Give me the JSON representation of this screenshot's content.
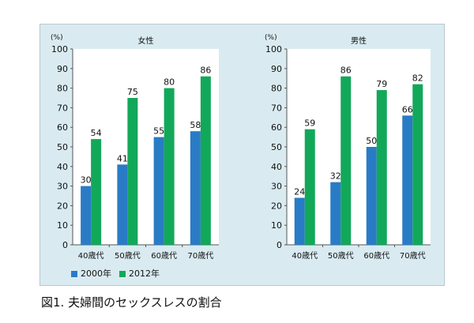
{
  "chart_data": [
    {
      "type": "bar",
      "title": "女性",
      "ylabel": "(%)",
      "categories": [
        "40歳代",
        "50歳代",
        "60歳代",
        "70歳代"
      ],
      "series": [
        {
          "name": "2000年",
          "values": [
            30,
            41,
            55,
            58
          ],
          "color": "#2a7bc6"
        },
        {
          "name": "2012年",
          "values": [
            54,
            75,
            80,
            86
          ],
          "color": "#12a85a"
        }
      ],
      "yticks": [
        0,
        10,
        20,
        30,
        40,
        50,
        60,
        70,
        80,
        90,
        100
      ],
      "ylim": [
        0,
        100
      ],
      "grid": false
    },
    {
      "type": "bar",
      "title": "男性",
      "ylabel": "(%)",
      "categories": [
        "40歳代",
        "50歳代",
        "60歳代",
        "70歳代"
      ],
      "series": [
        {
          "name": "2000年",
          "values": [
            24,
            32,
            50,
            66
          ],
          "color": "#2a7bc6"
        },
        {
          "name": "2012年",
          "values": [
            59,
            86,
            79,
            82
          ],
          "color": "#12a85a"
        }
      ],
      "yticks": [
        0,
        10,
        20,
        30,
        40,
        50,
        60,
        70,
        80,
        90,
        100
      ],
      "ylim": [
        0,
        100
      ],
      "grid": false
    }
  ],
  "legend": {
    "placement": "bottom-left",
    "items": [
      "2000年",
      "2012年"
    ]
  },
  "caption": "図1. 夫婦間のセックスレスの割合"
}
